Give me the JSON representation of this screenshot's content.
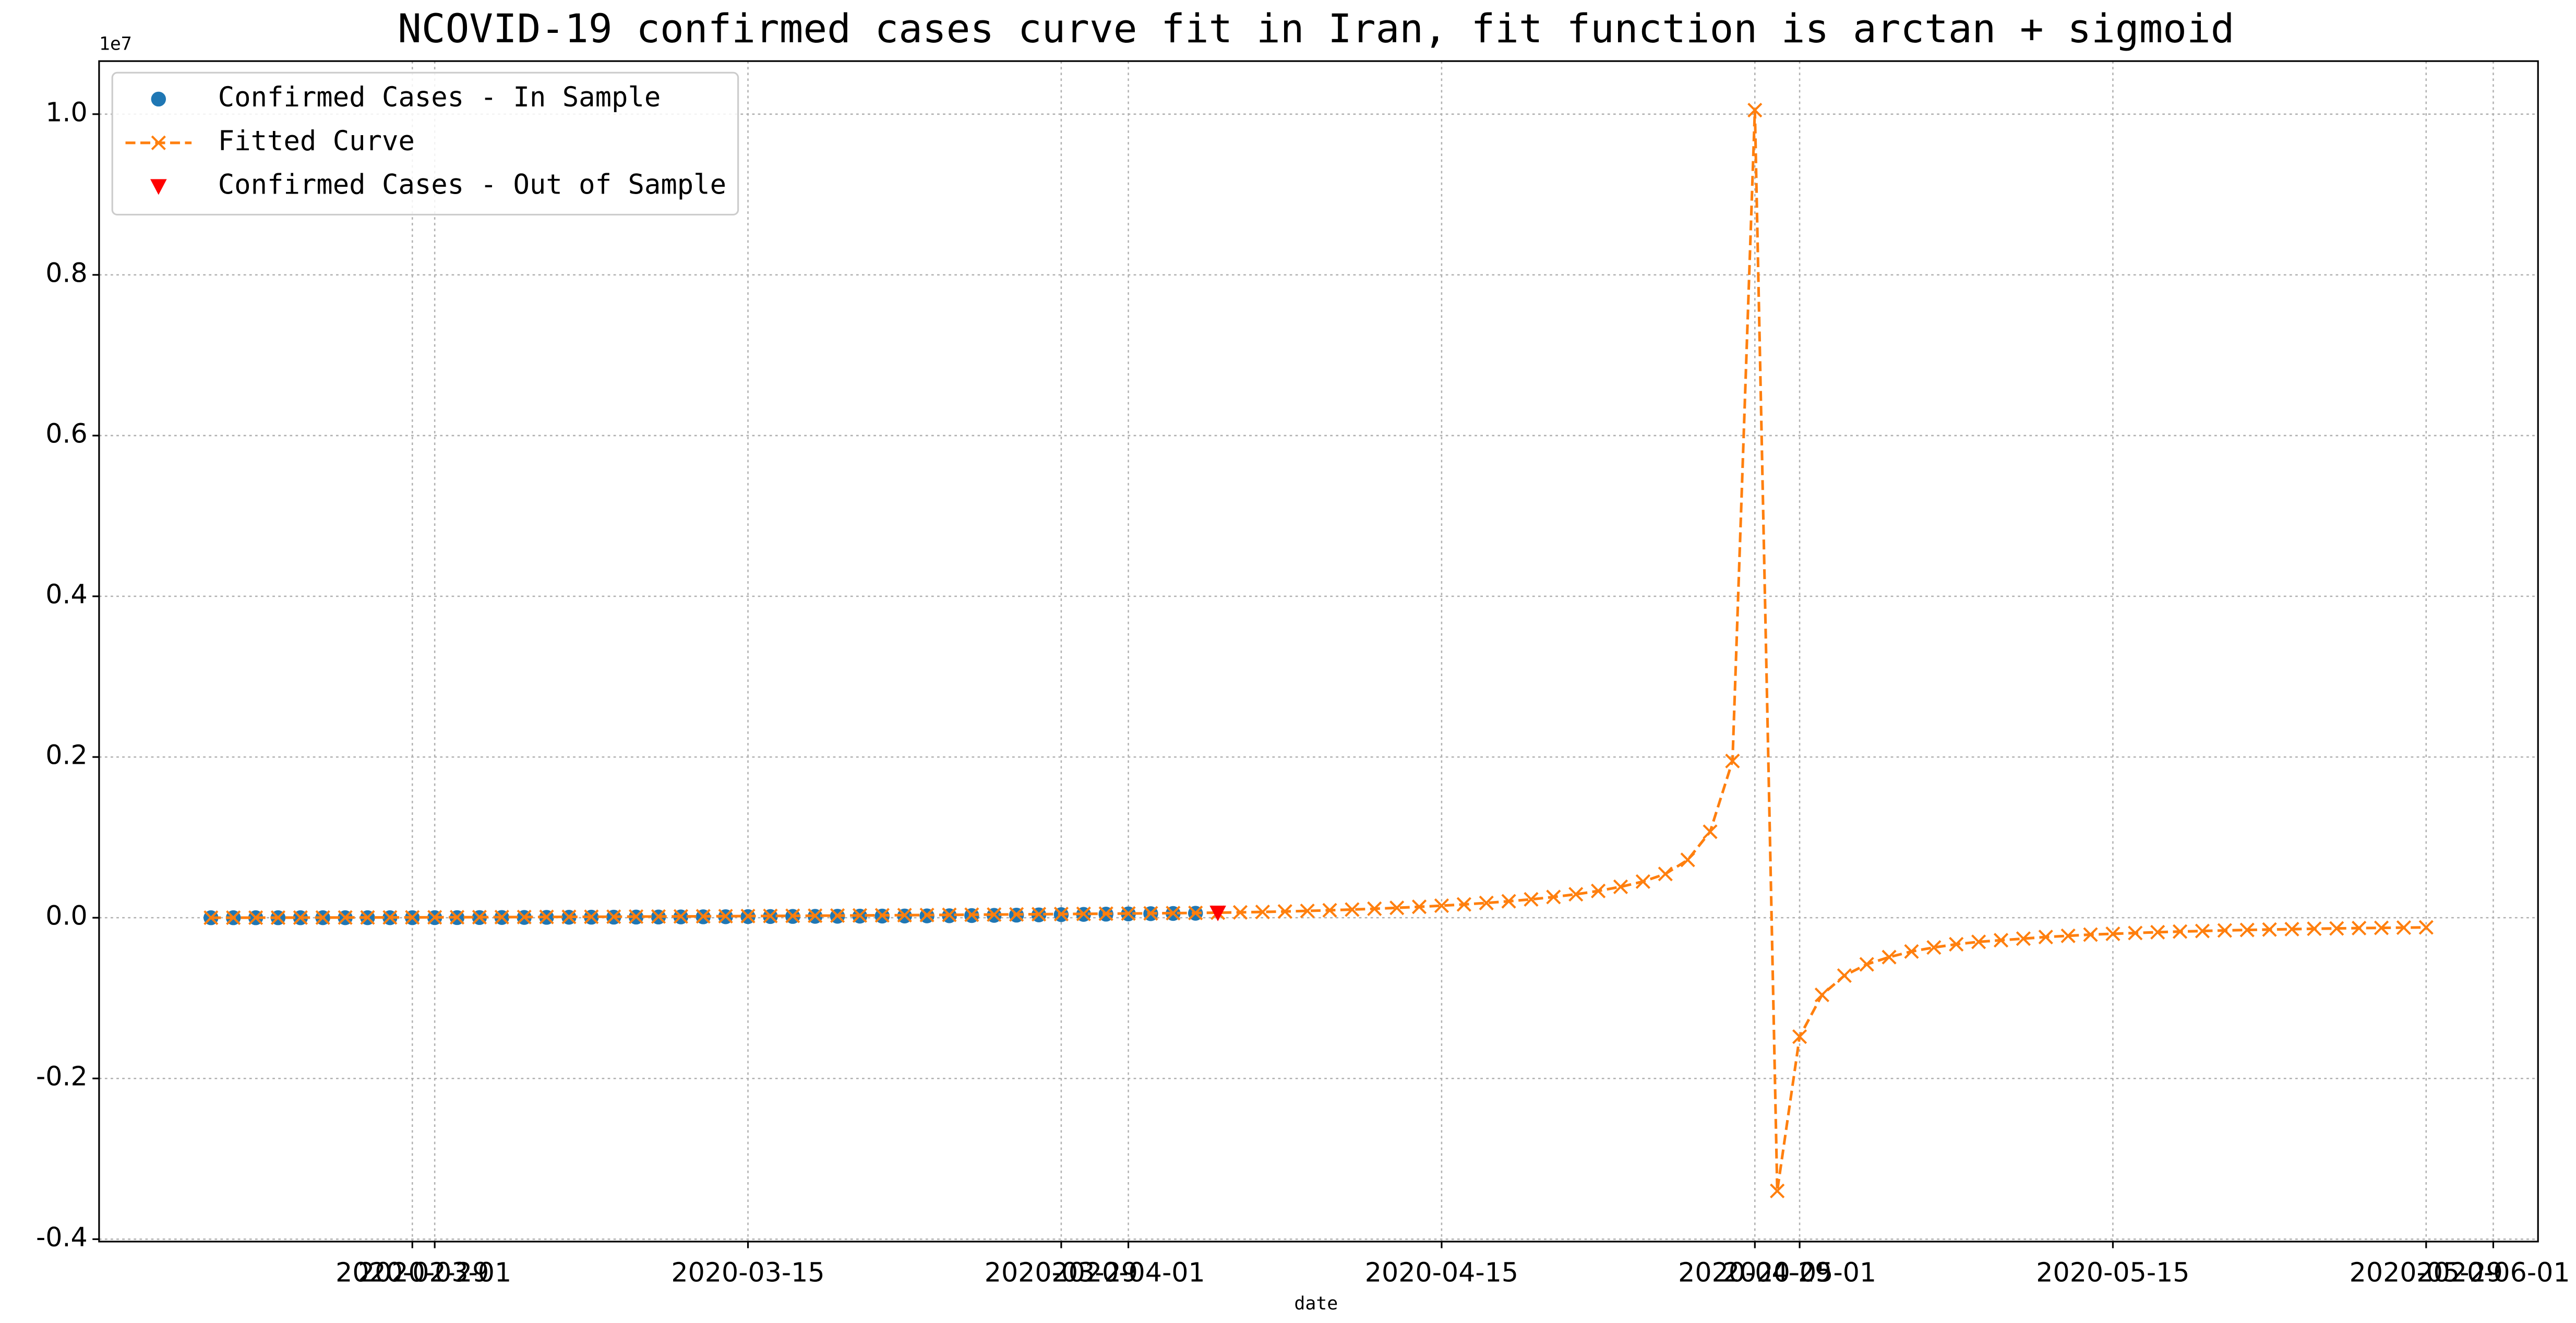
{
  "chart_data": {
    "type": "line",
    "title": "NCOVID-19 confirmed cases curve fit in Iran, fit function is arctan + sigmoid",
    "xlabel": "date",
    "y_offset_label": "1e7",
    "grid": true,
    "legend": "upper left",
    "xlim": [
      "2020-02-15",
      "2020-06-03"
    ],
    "xticks": [
      "2020-02-29",
      "2020-03-01",
      "2020-03-15",
      "2020-03-29",
      "2020-04-01",
      "2020-04-15",
      "2020-04-29",
      "2020-05-01",
      "2020-05-15",
      "2020-05-29",
      "2020-06-01"
    ],
    "ylim": [
      -4030000,
      10660000
    ],
    "yticks": [
      {
        "value": -4000000,
        "label": "-0.4"
      },
      {
        "value": -2000000,
        "label": "-0.2"
      },
      {
        "value": 0,
        "label": "0.0"
      },
      {
        "value": 2000000,
        "label": "0.2"
      },
      {
        "value": 4000000,
        "label": "0.4"
      },
      {
        "value": 6000000,
        "label": "0.6"
      },
      {
        "value": 8000000,
        "label": "0.8"
      },
      {
        "value": 10000000,
        "label": "1.0"
      }
    ],
    "series": [
      {
        "name": "Confirmed Cases - In Sample",
        "color": "#1f77b4",
        "marker": "o",
        "linestyle": "none",
        "x": [
          "2020-02-20",
          "2020-02-21",
          "2020-02-22",
          "2020-02-23",
          "2020-02-24",
          "2020-02-25",
          "2020-02-26",
          "2020-02-27",
          "2020-02-28",
          "2020-02-29",
          "2020-03-01",
          "2020-03-02",
          "2020-03-03",
          "2020-03-04",
          "2020-03-05",
          "2020-03-06",
          "2020-03-07",
          "2020-03-08",
          "2020-03-09",
          "2020-03-10",
          "2020-03-11",
          "2020-03-12",
          "2020-03-13",
          "2020-03-14",
          "2020-03-15",
          "2020-03-16",
          "2020-03-17",
          "2020-03-18",
          "2020-03-19",
          "2020-03-20",
          "2020-03-21",
          "2020-03-22",
          "2020-03-23",
          "2020-03-24",
          "2020-03-25",
          "2020-03-26",
          "2020-03-27",
          "2020-03-28",
          "2020-03-29",
          "2020-03-30",
          "2020-03-31",
          "2020-04-01",
          "2020-04-02",
          "2020-04-03",
          "2020-04-04"
        ],
        "values": [
          5,
          18,
          28,
          43,
          61,
          95,
          139,
          245,
          388,
          593,
          978,
          1501,
          2336,
          2922,
          3513,
          4747,
          5823,
          6566,
          7161,
          8042,
          9000,
          10075,
          11364,
          12729,
          13938,
          14991,
          16169,
          17361,
          18407,
          19644,
          20610,
          21638,
          23049,
          24811,
          27017,
          29406,
          32332,
          35408,
          38309,
          41495,
          44605,
          47593,
          50468,
          53183,
          55743
        ]
      },
      {
        "name": "Fitted Curve",
        "color": "#ff7f0e",
        "marker": "x",
        "linestyle": "dashed",
        "x": [
          "2020-02-20",
          "2020-02-21",
          "2020-02-22",
          "2020-02-23",
          "2020-02-24",
          "2020-02-25",
          "2020-02-26",
          "2020-02-27",
          "2020-02-28",
          "2020-02-29",
          "2020-03-01",
          "2020-03-02",
          "2020-03-03",
          "2020-03-04",
          "2020-03-05",
          "2020-03-06",
          "2020-03-07",
          "2020-03-08",
          "2020-03-09",
          "2020-03-10",
          "2020-03-11",
          "2020-03-12",
          "2020-03-13",
          "2020-03-14",
          "2020-03-15",
          "2020-03-16",
          "2020-03-17",
          "2020-03-18",
          "2020-03-19",
          "2020-03-20",
          "2020-03-21",
          "2020-03-22",
          "2020-03-23",
          "2020-03-24",
          "2020-03-25",
          "2020-03-26",
          "2020-03-27",
          "2020-03-28",
          "2020-03-29",
          "2020-03-30",
          "2020-03-31",
          "2020-04-01",
          "2020-04-02",
          "2020-04-03",
          "2020-04-04",
          "2020-04-05",
          "2020-04-06",
          "2020-04-07",
          "2020-04-08",
          "2020-04-09",
          "2020-04-10",
          "2020-04-11",
          "2020-04-12",
          "2020-04-13",
          "2020-04-14",
          "2020-04-15",
          "2020-04-16",
          "2020-04-17",
          "2020-04-18",
          "2020-04-19",
          "2020-04-20",
          "2020-04-21",
          "2020-04-22",
          "2020-04-23",
          "2020-04-24",
          "2020-04-25",
          "2020-04-26",
          "2020-04-27",
          "2020-04-28",
          "2020-04-29",
          "2020-04-30",
          "2020-05-01",
          "2020-05-02",
          "2020-05-03",
          "2020-05-04",
          "2020-05-05",
          "2020-05-06",
          "2020-05-07",
          "2020-05-08",
          "2020-05-09",
          "2020-05-10",
          "2020-05-11",
          "2020-05-12",
          "2020-05-13",
          "2020-05-14",
          "2020-05-15",
          "2020-05-16",
          "2020-05-17",
          "2020-05-18",
          "2020-05-19",
          "2020-05-20",
          "2020-05-21",
          "2020-05-22",
          "2020-05-23",
          "2020-05-24",
          "2020-05-25",
          "2020-05-26",
          "2020-05-27",
          "2020-05-28",
          "2020-05-29"
        ],
        "values": [
          300,
          600,
          900,
          1300,
          1700,
          2200,
          2700,
          3300,
          3900,
          4600,
          5300,
          6100,
          6900,
          7800,
          8700,
          9700,
          10700,
          11800,
          12900,
          14100,
          15300,
          16600,
          17900,
          19300,
          20700,
          22200,
          23700,
          25300,
          26900,
          28600,
          30300,
          32100,
          33900,
          35800,
          37700,
          39700,
          41700,
          43800,
          45900,
          48100,
          50300,
          52600,
          54900,
          57300,
          59700,
          63000,
          67000,
          72000,
          78000,
          85000,
          93000,
          102000,
          112000,
          123000,
          136000,
          150000,
          166000,
          184000,
          205000,
          229000,
          258000,
          292000,
          333000,
          385000,
          450000,
          545000,
          720000,
          1070000,
          1950000,
          10050000,
          -3400000,
          -1480000,
          -960000,
          -720000,
          -580000,
          -490000,
          -420000,
          -370000,
          -330000,
          -300000,
          -280000,
          -260000,
          -240000,
          -225000,
          -210000,
          -200000,
          -190000,
          -180000,
          -172000,
          -165000,
          -158000,
          -152000,
          -147000,
          -142000,
          -137000,
          -133000,
          -129000,
          -126000,
          -123000,
          -120000
        ]
      },
      {
        "name": "Confirmed Cases - Out of Sample",
        "color": "#ff0000",
        "marker": "v",
        "linestyle": "none",
        "x": [
          "2020-04-05"
        ],
        "values": [
          58226
        ]
      }
    ]
  }
}
